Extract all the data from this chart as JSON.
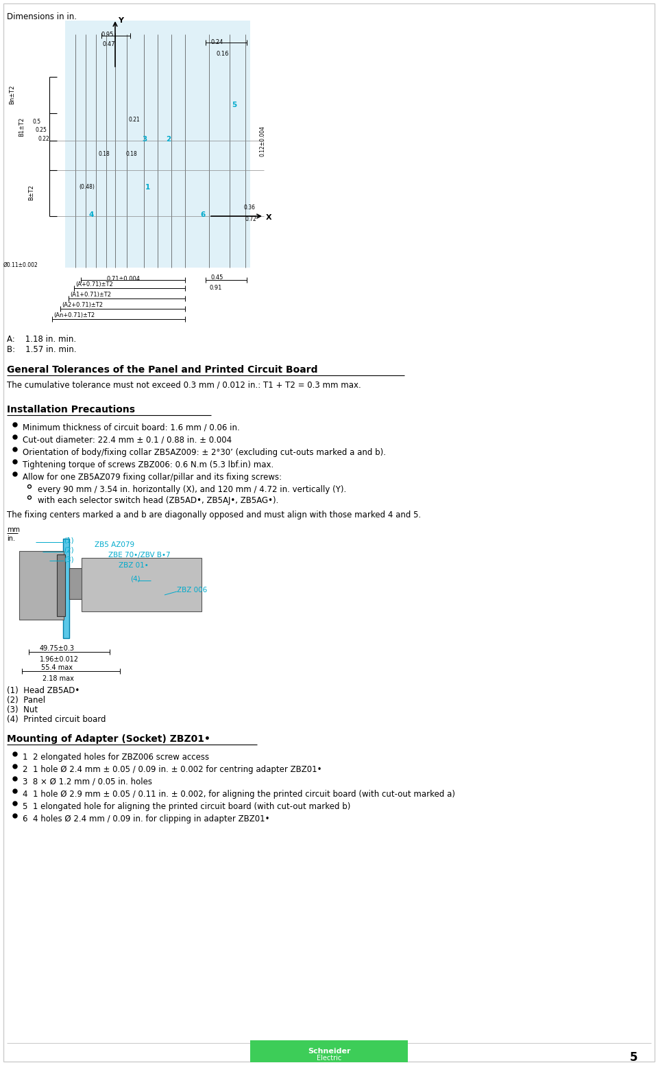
{
  "page_width": 9.6,
  "page_height": 15.52,
  "bg_color": "#ffffff",
  "cyan_color": "#00aacc",
  "light_blue_fill": "#d0eaf5",
  "page_number": "5",
  "schneider_green": "#3dcd58",
  "top_label": "Dimensions in in.",
  "section1_title": "General Tolerances of the Panel and Printed Circuit Board",
  "section1_text": "The cumulative tolerance must not exceed 0.3 mm / 0.012 in.: T1 + T2 = 0.3 mm max.",
  "section2_title": "Installation Precautions",
  "section2_bullets": [
    "Minimum thickness of circuit board: 1.6 mm / 0.06 in.",
    "Cut-out diameter: 22.4 mm ± 0.1 / 0.88 in. ± 0.004",
    "Orientation of body/fixing collar ZB5AZ009: ± 2°30’ (excluding cut-outs marked a and b).",
    "Tightening torque of screws ZBZ006: 0.6 N.m (5.3 lbf.in) max.",
    "Allow for one ZB5AZ079 fixing collar/pillar and its fixing screws:"
  ],
  "section2_sub_bullets": [
    "every 90 mm / 3.54 in. horizontally (X), and 120 mm / 4.72 in. vertically (Y).",
    "with each selector switch head (ZB5AD•, ZB5AJ•, ZB5AG•)."
  ],
  "section2_closing": "The fixing centers marked a and b are diagonally opposed and must align with those marked 4 and 5.",
  "diagram2_mm_label": "mm",
  "diagram2_in_label": "in.",
  "legend_items": [
    "(1)  Head ZB5AD•",
    "(2)  Panel",
    "(3)  Nut",
    "(4)  Printed circuit board"
  ],
  "section3_title": "Mounting of Adapter (Socket) ZBZ01•",
  "section3_bullets": [
    "1  2 elongated holes for ZBZ006 screw access",
    "2  1 hole Ø 2.4 mm ± 0.05 / 0.09 in. ± 0.002 for centring adapter ZBZ01•",
    "3  8 × Ø 1.2 mm / 0.05 in. holes",
    "4  1 hole Ø 2.9 mm ± 0.05 / 0.11 in. ± 0.002, for aligning the printed circuit board (with cut-out marked a)",
    "5  1 elongated hole for aligning the printed circuit board (with cut-out marked b)",
    "6  4 holes Ø 2.4 mm / 0.09 in. for clipping in adapter ZBZ01•"
  ],
  "dim_095": "0.95",
  "dim_047": "0.47",
  "dim_024": "0.24",
  "dim_016": "0.16",
  "dim_021": "0.21",
  "dim_018a": "0.18",
  "dim_018b": "0.18",
  "dim_048": "(0.48)",
  "dim_036": "0.36",
  "dim_072": "0.72",
  "dim_012": "0.12±0.004",
  "dim_071": "0.71±0.004",
  "dim_045": "0.45",
  "dim_091": "0.91",
  "dim_A071": "(A+0.71)±T2",
  "dim_A1071": "(A1+0.71)±T2",
  "dim_A2071": "(A2+0.71)±T2",
  "dim_An071": "(An+0.71)±T2",
  "dim_Bn": "Bn±T2",
  "dim_B1": "B1±T2",
  "dim_B": "B±T2",
  "dim_hole": "Ø0.11±0.002",
  "dim_05": "0.5",
  "dim_025": "0.25",
  "dim_022": "0.22"
}
